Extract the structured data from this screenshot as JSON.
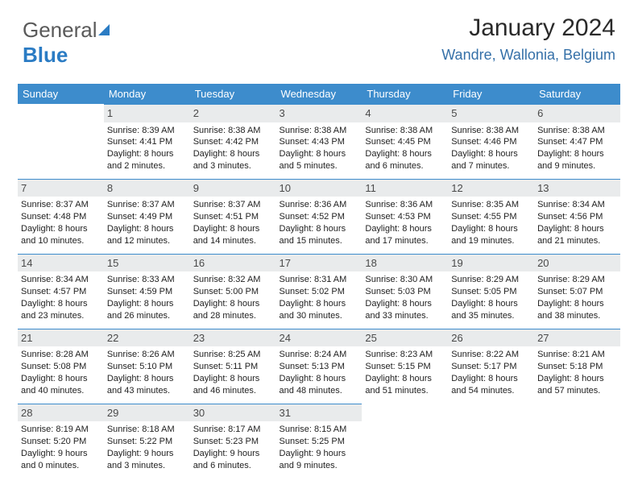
{
  "logo": {
    "part1": "General",
    "part2": "Blue"
  },
  "header": {
    "month": "January 2024",
    "location": "Wandre, Wallonia, Belgium"
  },
  "theme": {
    "header_bg": "#3d8ccc",
    "daynum_bg": "#e9ebec",
    "accent": "#3570a8"
  },
  "weekdays": [
    "Sunday",
    "Monday",
    "Tuesday",
    "Wednesday",
    "Thursday",
    "Friday",
    "Saturday"
  ],
  "start_offset": 1,
  "days": [
    {
      "n": "1",
      "sr": "Sunrise: 8:39 AM",
      "ss": "Sunset: 4:41 PM",
      "d1": "Daylight: 8 hours",
      "d2": "and 2 minutes."
    },
    {
      "n": "2",
      "sr": "Sunrise: 8:38 AM",
      "ss": "Sunset: 4:42 PM",
      "d1": "Daylight: 8 hours",
      "d2": "and 3 minutes."
    },
    {
      "n": "3",
      "sr": "Sunrise: 8:38 AM",
      "ss": "Sunset: 4:43 PM",
      "d1": "Daylight: 8 hours",
      "d2": "and 5 minutes."
    },
    {
      "n": "4",
      "sr": "Sunrise: 8:38 AM",
      "ss": "Sunset: 4:45 PM",
      "d1": "Daylight: 8 hours",
      "d2": "and 6 minutes."
    },
    {
      "n": "5",
      "sr": "Sunrise: 8:38 AM",
      "ss": "Sunset: 4:46 PM",
      "d1": "Daylight: 8 hours",
      "d2": "and 7 minutes."
    },
    {
      "n": "6",
      "sr": "Sunrise: 8:38 AM",
      "ss": "Sunset: 4:47 PM",
      "d1": "Daylight: 8 hours",
      "d2": "and 9 minutes."
    },
    {
      "n": "7",
      "sr": "Sunrise: 8:37 AM",
      "ss": "Sunset: 4:48 PM",
      "d1": "Daylight: 8 hours",
      "d2": "and 10 minutes."
    },
    {
      "n": "8",
      "sr": "Sunrise: 8:37 AM",
      "ss": "Sunset: 4:49 PM",
      "d1": "Daylight: 8 hours",
      "d2": "and 12 minutes."
    },
    {
      "n": "9",
      "sr": "Sunrise: 8:37 AM",
      "ss": "Sunset: 4:51 PM",
      "d1": "Daylight: 8 hours",
      "d2": "and 14 minutes."
    },
    {
      "n": "10",
      "sr": "Sunrise: 8:36 AM",
      "ss": "Sunset: 4:52 PM",
      "d1": "Daylight: 8 hours",
      "d2": "and 15 minutes."
    },
    {
      "n": "11",
      "sr": "Sunrise: 8:36 AM",
      "ss": "Sunset: 4:53 PM",
      "d1": "Daylight: 8 hours",
      "d2": "and 17 minutes."
    },
    {
      "n": "12",
      "sr": "Sunrise: 8:35 AM",
      "ss": "Sunset: 4:55 PM",
      "d1": "Daylight: 8 hours",
      "d2": "and 19 minutes."
    },
    {
      "n": "13",
      "sr": "Sunrise: 8:34 AM",
      "ss": "Sunset: 4:56 PM",
      "d1": "Daylight: 8 hours",
      "d2": "and 21 minutes."
    },
    {
      "n": "14",
      "sr": "Sunrise: 8:34 AM",
      "ss": "Sunset: 4:57 PM",
      "d1": "Daylight: 8 hours",
      "d2": "and 23 minutes."
    },
    {
      "n": "15",
      "sr": "Sunrise: 8:33 AM",
      "ss": "Sunset: 4:59 PM",
      "d1": "Daylight: 8 hours",
      "d2": "and 26 minutes."
    },
    {
      "n": "16",
      "sr": "Sunrise: 8:32 AM",
      "ss": "Sunset: 5:00 PM",
      "d1": "Daylight: 8 hours",
      "d2": "and 28 minutes."
    },
    {
      "n": "17",
      "sr": "Sunrise: 8:31 AM",
      "ss": "Sunset: 5:02 PM",
      "d1": "Daylight: 8 hours",
      "d2": "and 30 minutes."
    },
    {
      "n": "18",
      "sr": "Sunrise: 8:30 AM",
      "ss": "Sunset: 5:03 PM",
      "d1": "Daylight: 8 hours",
      "d2": "and 33 minutes."
    },
    {
      "n": "19",
      "sr": "Sunrise: 8:29 AM",
      "ss": "Sunset: 5:05 PM",
      "d1": "Daylight: 8 hours",
      "d2": "and 35 minutes."
    },
    {
      "n": "20",
      "sr": "Sunrise: 8:29 AM",
      "ss": "Sunset: 5:07 PM",
      "d1": "Daylight: 8 hours",
      "d2": "and 38 minutes."
    },
    {
      "n": "21",
      "sr": "Sunrise: 8:28 AM",
      "ss": "Sunset: 5:08 PM",
      "d1": "Daylight: 8 hours",
      "d2": "and 40 minutes."
    },
    {
      "n": "22",
      "sr": "Sunrise: 8:26 AM",
      "ss": "Sunset: 5:10 PM",
      "d1": "Daylight: 8 hours",
      "d2": "and 43 minutes."
    },
    {
      "n": "23",
      "sr": "Sunrise: 8:25 AM",
      "ss": "Sunset: 5:11 PM",
      "d1": "Daylight: 8 hours",
      "d2": "and 46 minutes."
    },
    {
      "n": "24",
      "sr": "Sunrise: 8:24 AM",
      "ss": "Sunset: 5:13 PM",
      "d1": "Daylight: 8 hours",
      "d2": "and 48 minutes."
    },
    {
      "n": "25",
      "sr": "Sunrise: 8:23 AM",
      "ss": "Sunset: 5:15 PM",
      "d1": "Daylight: 8 hours",
      "d2": "and 51 minutes."
    },
    {
      "n": "26",
      "sr": "Sunrise: 8:22 AM",
      "ss": "Sunset: 5:17 PM",
      "d1": "Daylight: 8 hours",
      "d2": "and 54 minutes."
    },
    {
      "n": "27",
      "sr": "Sunrise: 8:21 AM",
      "ss": "Sunset: 5:18 PM",
      "d1": "Daylight: 8 hours",
      "d2": "and 57 minutes."
    },
    {
      "n": "28",
      "sr": "Sunrise: 8:19 AM",
      "ss": "Sunset: 5:20 PM",
      "d1": "Daylight: 9 hours",
      "d2": "and 0 minutes."
    },
    {
      "n": "29",
      "sr": "Sunrise: 8:18 AM",
      "ss": "Sunset: 5:22 PM",
      "d1": "Daylight: 9 hours",
      "d2": "and 3 minutes."
    },
    {
      "n": "30",
      "sr": "Sunrise: 8:17 AM",
      "ss": "Sunset: 5:23 PM",
      "d1": "Daylight: 9 hours",
      "d2": "and 6 minutes."
    },
    {
      "n": "31",
      "sr": "Sunrise: 8:15 AM",
      "ss": "Sunset: 5:25 PM",
      "d1": "Daylight: 9 hours",
      "d2": "and 9 minutes."
    }
  ]
}
